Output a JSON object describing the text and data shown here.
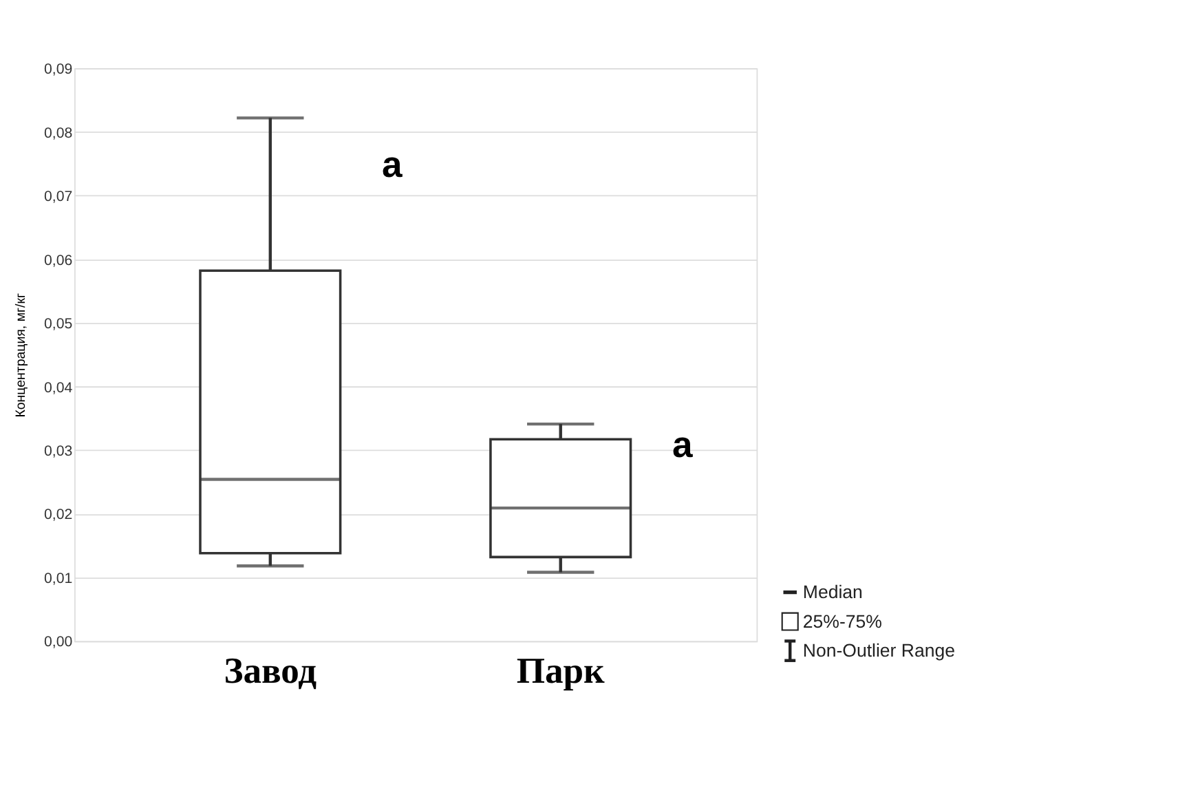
{
  "chart_data": {
    "type": "box",
    "ylabel": "Концентрация, мг/кг",
    "categories": [
      "Завод",
      "Парк"
    ],
    "boxes": [
      {
        "low": 0.0118,
        "q1": 0.0138,
        "median": 0.0254,
        "q3": 0.0582,
        "high": 0.0822
      },
      {
        "low": 0.0108,
        "q1": 0.0132,
        "median": 0.0209,
        "q3": 0.0317,
        "high": 0.0341
      }
    ],
    "ylim": [
      0,
      0.09
    ],
    "yticks": [
      {
        "value": 0,
        "label": "0,00"
      },
      {
        "value": 0.01,
        "label": "0,01"
      },
      {
        "value": 0.02,
        "label": "0,02"
      },
      {
        "value": 0.03,
        "label": "0,03"
      },
      {
        "value": 0.04,
        "label": "0,04"
      },
      {
        "value": 0.05,
        "label": "0,05"
      },
      {
        "value": 0.06,
        "label": "0,06"
      },
      {
        "value": 0.07,
        "label": "0,07"
      },
      {
        "value": 0.08,
        "label": "0,08"
      },
      {
        "value": 0.09,
        "label": "0,09"
      }
    ],
    "grid": "y",
    "annotations": [
      "a",
      "a",
      "Median",
      "25%-75%",
      "Non-Outlier Range"
    ]
  }
}
